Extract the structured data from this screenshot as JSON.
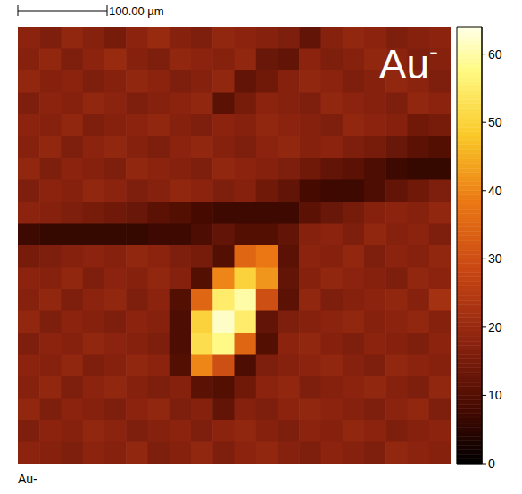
{
  "chart_data": {
    "type": "heatmap",
    "title": "Au-",
    "caption": "Au-",
    "scale_bar": "100.00 µm",
    "tick_labels": false,
    "cells": [
      [
        18,
        16,
        19,
        17,
        15,
        18,
        20,
        17,
        16,
        19,
        18,
        17,
        16,
        12,
        17,
        19,
        18,
        16,
        17,
        18
      ],
      [
        17,
        19,
        16,
        18,
        20,
        17,
        16,
        19,
        18,
        17,
        19,
        13,
        12,
        18,
        16,
        17,
        19,
        18,
        16,
        17
      ],
      [
        19,
        17,
        18,
        16,
        17,
        19,
        18,
        16,
        17,
        19,
        12,
        14,
        17,
        19,
        18,
        16,
        17,
        19,
        18,
        16
      ],
      [
        16,
        18,
        17,
        19,
        18,
        16,
        17,
        18,
        19,
        11,
        15,
        18,
        17,
        16,
        19,
        18,
        17,
        16,
        19,
        18
      ],
      [
        18,
        17,
        19,
        16,
        17,
        18,
        19,
        17,
        16,
        18,
        17,
        19,
        18,
        17,
        16,
        19,
        18,
        17,
        14,
        15
      ],
      [
        17,
        19,
        16,
        18,
        19,
        17,
        16,
        18,
        19,
        17,
        16,
        18,
        19,
        17,
        18,
        16,
        15,
        13,
        11,
        10
      ],
      [
        19,
        16,
        18,
        17,
        16,
        19,
        18,
        17,
        16,
        19,
        18,
        17,
        16,
        14,
        12,
        11,
        9,
        7,
        6,
        6
      ],
      [
        16,
        18,
        17,
        19,
        18,
        16,
        17,
        19,
        18,
        16,
        17,
        14,
        12,
        8,
        7,
        7,
        9,
        12,
        14,
        16
      ],
      [
        18,
        17,
        16,
        15,
        14,
        13,
        11,
        10,
        8,
        7,
        7,
        7,
        7,
        11,
        13,
        15,
        17,
        18,
        17,
        19
      ],
      [
        7,
        6,
        6,
        6,
        6,
        6,
        7,
        7,
        9,
        12,
        10,
        10,
        12,
        17,
        18,
        16,
        19,
        17,
        18,
        16
      ],
      [
        15,
        16,
        17,
        18,
        17,
        19,
        18,
        16,
        15,
        10,
        35,
        38,
        11,
        18,
        17,
        19,
        16,
        18,
        17,
        19
      ],
      [
        18,
        17,
        19,
        16,
        18,
        17,
        19,
        17,
        10,
        40,
        50,
        42,
        12,
        17,
        19,
        18,
        17,
        16,
        19,
        18
      ],
      [
        17,
        19,
        16,
        18,
        19,
        16,
        18,
        10,
        35,
        55,
        60,
        30,
        11,
        19,
        16,
        17,
        18,
        19,
        17,
        22
      ],
      [
        19,
        16,
        18,
        17,
        16,
        18,
        17,
        9,
        50,
        62,
        55,
        12,
        16,
        17,
        18,
        19,
        17,
        18,
        19,
        17
      ],
      [
        16,
        18,
        17,
        19,
        18,
        17,
        16,
        9,
        52,
        58,
        35,
        10,
        18,
        19,
        17,
        16,
        18,
        17,
        16,
        18
      ],
      [
        18,
        17,
        19,
        16,
        17,
        19,
        18,
        10,
        40,
        30,
        9,
        16,
        17,
        18,
        19,
        17,
        16,
        19,
        18,
        17
      ],
      [
        17,
        19,
        16,
        18,
        19,
        17,
        16,
        17,
        11,
        10,
        14,
        18,
        19,
        16,
        17,
        18,
        19,
        17,
        16,
        19
      ],
      [
        19,
        16,
        18,
        17,
        16,
        18,
        19,
        16,
        17,
        12,
        17,
        16,
        18,
        19,
        18,
        17,
        16,
        18,
        19,
        16
      ],
      [
        16,
        18,
        17,
        19,
        18,
        16,
        17,
        18,
        16,
        18,
        19,
        17,
        16,
        18,
        17,
        19,
        18,
        16,
        17,
        18
      ],
      [
        18,
        17,
        16,
        18,
        17,
        19,
        16,
        17,
        19,
        16,
        18,
        19,
        17,
        16,
        18,
        17,
        16,
        19,
        18,
        17
      ]
    ],
    "colorbar": {
      "range": [
        0,
        64
      ],
      "ticks": [
        0,
        10,
        20,
        30,
        40,
        50,
        60
      ]
    }
  }
}
